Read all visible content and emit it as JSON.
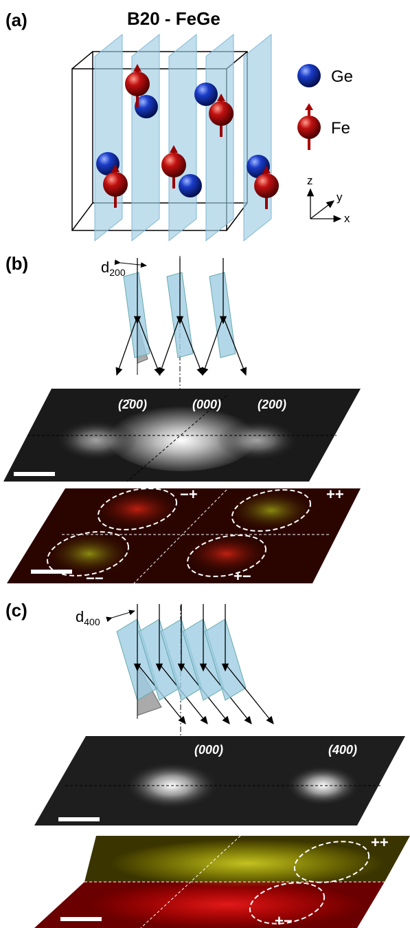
{
  "panel_a": {
    "label": "(a)",
    "title": "B20 - FeGe",
    "legend": [
      {
        "label": "Ge"
      },
      {
        "label": "Fe"
      }
    ],
    "axes": {
      "z": "z",
      "y": "y",
      "x": "x"
    }
  },
  "panel_b": {
    "label": "(b)",
    "spacing": {
      "symbol": "d",
      "subscript": "200"
    },
    "diffraction_labels": [
      "(2̄00)",
      "(000)",
      "(200)"
    ],
    "quadrant_labels": [
      "−+",
      "++",
      "−−",
      "+−"
    ]
  },
  "panel_c": {
    "label": "(c)",
    "spacing": {
      "symbol": "d",
      "subscript": "400"
    },
    "diffraction_labels": [
      "(000)",
      "(400)"
    ],
    "quadrant_labels": [
      "++",
      "+−"
    ]
  }
}
